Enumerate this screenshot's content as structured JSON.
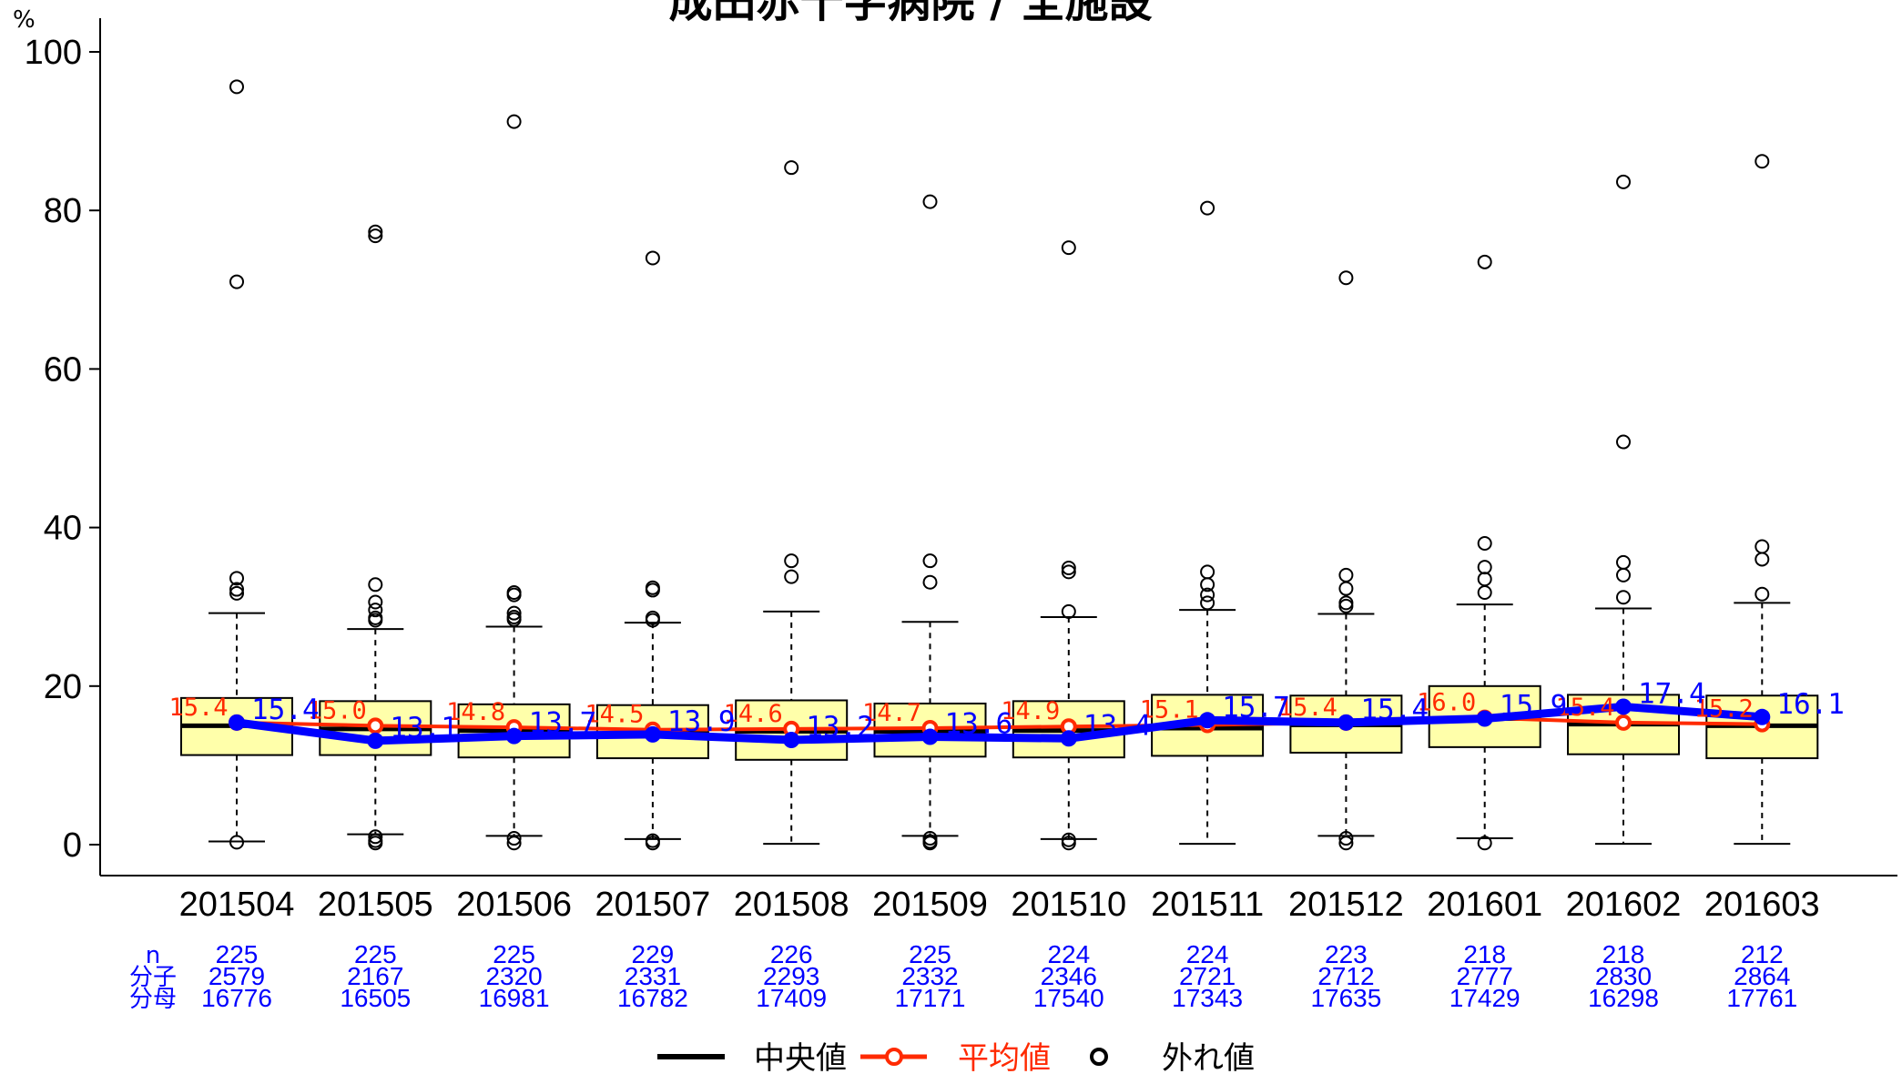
{
  "chart_data": {
    "type": "box",
    "title": "成田赤十字病院 / 全施設",
    "ylabel": "%",
    "ylim": [
      0,
      100
    ],
    "yticks": [
      0,
      20,
      40,
      60,
      80,
      100
    ],
    "grid": false,
    "categories": [
      "201504",
      "201505",
      "201506",
      "201507",
      "201508",
      "201509",
      "201510",
      "201511",
      "201512",
      "201601",
      "201602",
      "201603"
    ],
    "boxes": [
      {
        "q1": 11.3,
        "median": 15.0,
        "q3": 18.5,
        "whisker_low": 0.4,
        "whisker_high": 29.2,
        "outliers": [
          95.6,
          71.0,
          33.6,
          32.2,
          31.7,
          0.3
        ]
      },
      {
        "q1": 11.3,
        "median": 14.6,
        "q3": 18.1,
        "whisker_low": 1.3,
        "whisker_high": 27.2,
        "outliers": [
          77.3,
          76.8,
          32.8,
          30.6,
          29.6,
          28.6,
          28.3,
          1.0,
          0.5,
          0.2
        ]
      },
      {
        "q1": 11.0,
        "median": 14.4,
        "q3": 17.7,
        "whisker_low": 1.1,
        "whisker_high": 27.5,
        "outliers": [
          91.2,
          31.8,
          31.5,
          29.2,
          28.7,
          28.4,
          0.8,
          0.2
        ]
      },
      {
        "q1": 10.9,
        "median": 14.0,
        "q3": 17.6,
        "whisker_low": 0.7,
        "whisker_high": 28.0,
        "outliers": [
          74.0,
          32.4,
          32.1,
          28.6,
          28.3,
          0.5,
          0.2
        ]
      },
      {
        "q1": 10.7,
        "median": 14.3,
        "q3": 18.2,
        "whisker_low": 0.1,
        "whisker_high": 29.4,
        "outliers": [
          85.4,
          35.8,
          33.8
        ]
      },
      {
        "q1": 11.1,
        "median": 14.3,
        "q3": 17.8,
        "whisker_low": 1.1,
        "whisker_high": 28.1,
        "outliers": [
          81.1,
          35.8,
          33.1,
          0.8,
          0.4,
          0.2
        ]
      },
      {
        "q1": 11.0,
        "median": 14.4,
        "q3": 18.1,
        "whisker_low": 0.7,
        "whisker_high": 28.7,
        "outliers": [
          75.3,
          34.9,
          34.4,
          29.4,
          0.6,
          0.2
        ]
      },
      {
        "q1": 11.2,
        "median": 14.7,
        "q3": 18.9,
        "whisker_low": 0.1,
        "whisker_high": 29.6,
        "outliers": [
          80.3,
          34.4,
          32.8,
          31.5,
          30.5
        ]
      },
      {
        "q1": 11.6,
        "median": 15.1,
        "q3": 18.8,
        "whisker_low": 1.1,
        "whisker_high": 29.1,
        "outliers": [
          71.5,
          34.0,
          32.3,
          30.5,
          30.1,
          0.8,
          0.2
        ]
      },
      {
        "q1": 12.3,
        "median": 15.9,
        "q3": 20.0,
        "whisker_low": 0.8,
        "whisker_high": 30.3,
        "outliers": [
          73.5,
          38.0,
          35.0,
          33.5,
          31.8,
          0.2
        ]
      },
      {
        "q1": 11.4,
        "median": 15.2,
        "q3": 18.9,
        "whisker_low": 0.1,
        "whisker_high": 29.8,
        "outliers": [
          83.6,
          50.8,
          35.6,
          34.0,
          31.2
        ]
      },
      {
        "q1": 10.9,
        "median": 15.0,
        "q3": 18.8,
        "whisker_low": 0.1,
        "whisker_high": 30.5,
        "outliers": [
          86.2,
          37.6,
          36.0,
          31.6
        ]
      }
    ],
    "series": [
      {
        "name": "平均値",
        "color": "#ff2a00",
        "values": [
          15.4,
          15.0,
          14.8,
          14.5,
          14.6,
          14.7,
          14.9,
          15.1,
          15.4,
          16.0,
          15.4,
          15.2
        ],
        "labels": [
          "15.4",
          "15.0",
          "14.8",
          "14.5",
          "14.6",
          "14.7",
          "14.9",
          "15.1",
          "15.4",
          "16.0",
          "15.4",
          "15.2"
        ]
      },
      {
        "color": "#0000ff",
        "values": [
          15.4,
          13.1,
          13.7,
          13.9,
          13.2,
          13.6,
          13.4,
          15.7,
          15.4,
          15.9,
          17.4,
          16.1
        ],
        "labels": [
          "15.4",
          "13.1",
          "13.7",
          "13.9",
          "13.2",
          "13.6",
          "13.4",
          "15.7",
          "15.4",
          "15.9",
          "17.4",
          "16.1"
        ]
      }
    ],
    "counts": {
      "row_labels": [
        "n",
        "分子",
        "分母"
      ],
      "n": [
        "225",
        "225",
        "225",
        "229",
        "226",
        "225",
        "224",
        "224",
        "223",
        "218",
        "218",
        "212"
      ],
      "numerator": [
        "2579",
        "2167",
        "2320",
        "2331",
        "2293",
        "2332",
        "2346",
        "2721",
        "2712",
        "2777",
        "2830",
        "2864"
      ],
      "denominator": [
        "16776",
        "16505",
        "16981",
        "16782",
        "17409",
        "17171",
        "17540",
        "17343",
        "17635",
        "17429",
        "16298",
        "17761"
      ]
    },
    "legend": {
      "position": "bottom",
      "items": [
        {
          "label": "中央値",
          "color": "#000000"
        },
        {
          "label": "平均値",
          "color": "#ff2a00"
        },
        {
          "label": "外れ値",
          "color": "#000000"
        }
      ]
    },
    "colors": {
      "box_fill": "#ffffaa",
      "mean": "#ff2a00",
      "rate": "#0000ff",
      "counts": "#0000ff"
    }
  }
}
